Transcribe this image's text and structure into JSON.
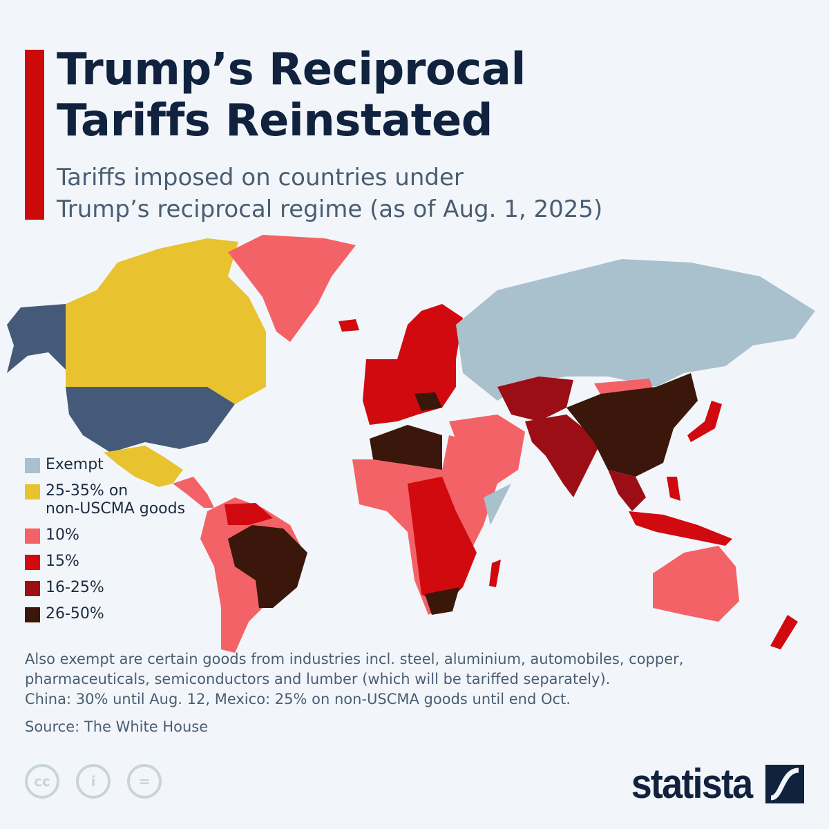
{
  "header": {
    "title_line1": "Trump’s Reciprocal",
    "title_line2": "Tariffs Reinstated",
    "subtitle_line1": "Tariffs imposed on countries under",
    "subtitle_line2": "Trump’s reciprocal regime (as of Aug. 1, 2025)"
  },
  "colors": {
    "accent_bar": "#cc0a0a",
    "united_states": "#445a78",
    "exempt": "#a9c1cc",
    "yellow": "#e8c22f",
    "ten": "#f36266",
    "fifteen": "#d10a0f",
    "sixteen_25": "#9b0e16",
    "twentysix_50": "#3a170a"
  },
  "legend": {
    "items": [
      {
        "label": "Exempt",
        "color": "#a9c1cc"
      },
      {
        "label_line1": "25-35% on",
        "label_line2": "non-USCMA goods",
        "color": "#e8c22f"
      },
      {
        "label": "10%",
        "color": "#f36266"
      },
      {
        "label": "15%",
        "color": "#d10a0f"
      },
      {
        "label": "16-25%",
        "color": "#9b0e16"
      },
      {
        "label": "26-50%",
        "color": "#3a170a"
      }
    ]
  },
  "footer": {
    "note_line1": "Also exempt are certain goods from industries incl. steel, aluminium, automobiles, copper,",
    "note_line2": "pharmaceuticals, semiconductors and lumber (which will be tariffed separately).",
    "note_line3": "China: 30% until Aug. 12, Mexico: 25% on non-USCMA goods until end Oct.",
    "source": "Source: The White House",
    "logo": "statista",
    "license_icons": [
      "cc-icon",
      "attribution-icon",
      "no-derivatives-icon"
    ]
  }
}
